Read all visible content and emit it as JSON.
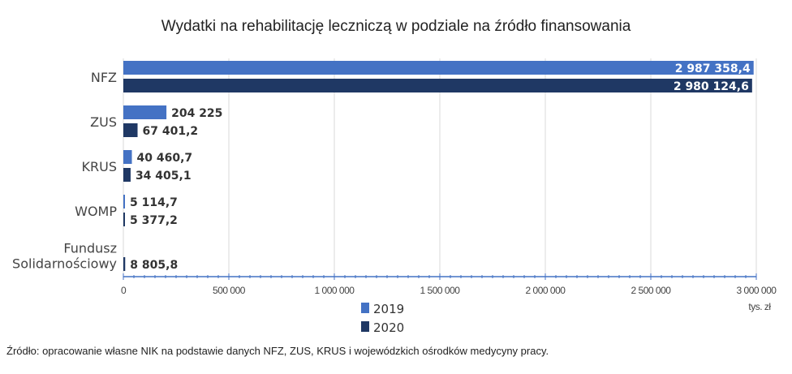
{
  "chart_data": {
    "type": "bar",
    "orientation": "horizontal",
    "title": "Wydatki na rehabilitację leczniczą w podziale na źródło finansowania",
    "categories": [
      "NFZ",
      "ZUS",
      "KRUS",
      "WOMP",
      "Fundusz Solidarnościowy"
    ],
    "category_lines": [
      [
        "NFZ"
      ],
      [
        "ZUS"
      ],
      [
        "KRUS"
      ],
      [
        "WOMP"
      ],
      [
        "Fundusz",
        "Solidarnościowy"
      ]
    ],
    "series": [
      {
        "name": "2019",
        "color": "#4472c4",
        "values": [
          2987358.4,
          204225,
          40460.7,
          5114.7,
          null
        ],
        "labels": [
          "2 987 358,4",
          "204 225",
          "40 460,7",
          "5 114,7",
          ""
        ]
      },
      {
        "name": "2020",
        "color": "#1f3864",
        "values": [
          2980124.6,
          67401.2,
          34405.1,
          5377.2,
          8805.8
        ],
        "labels": [
          "2 980 124,6",
          "67 401,2",
          "34 405,1",
          "5 377,2",
          "8 805,8"
        ]
      }
    ],
    "xlim": [
      0,
      3000000
    ],
    "xticks": [
      0,
      500000,
      1000000,
      1500000,
      2000000,
      2500000,
      3000000
    ],
    "xtick_labels": [
      "0",
      "500 000",
      "1 000 000",
      "1 500 000",
      "2 000 000",
      "2 500 000",
      "3 000 000"
    ],
    "xunit": "tys. zł",
    "grid": "vertical",
    "legend": "bottom-center"
  },
  "source": "Źródło: opracowanie własne NIK na podstawie danych NFZ, ZUS, KRUS i wojewódzkich ośrodków medycyny pracy."
}
